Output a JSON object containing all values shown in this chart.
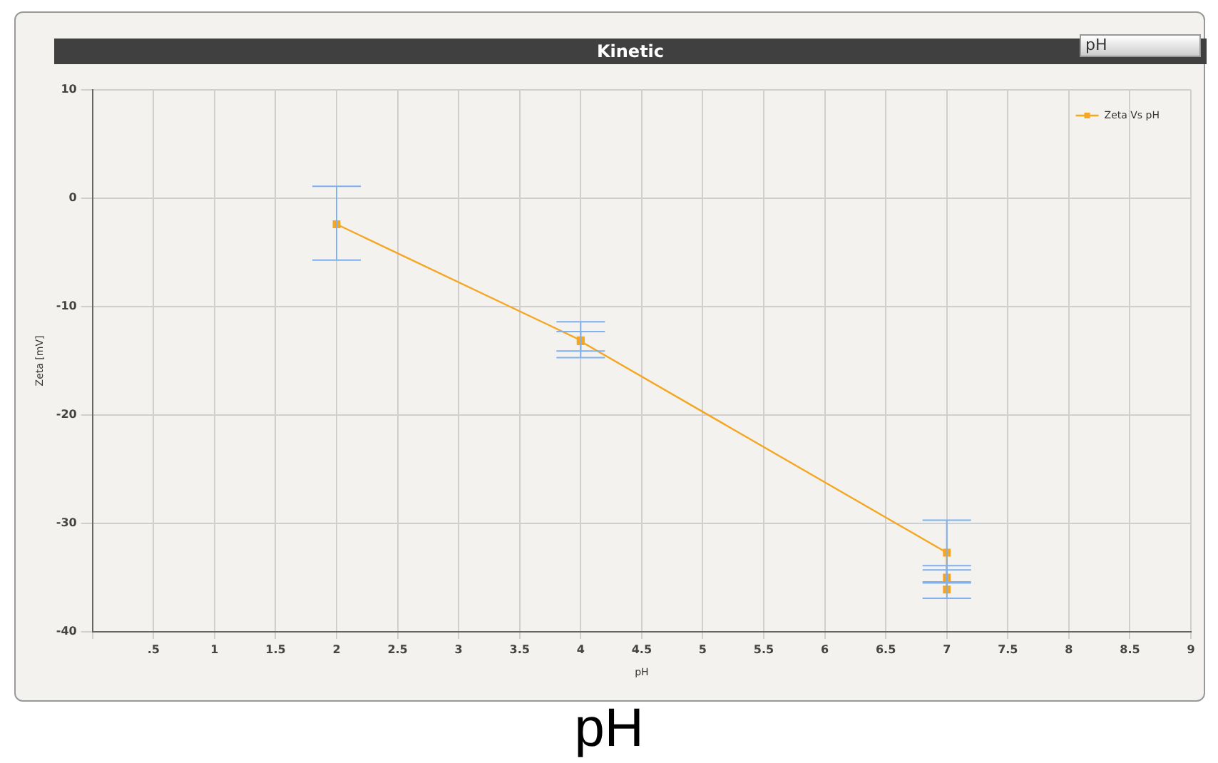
{
  "chart_data": {
    "type": "line",
    "title": "Kinetic",
    "xlabel": "pH",
    "ylabel": "Zeta [mV]",
    "annotations": [
      "pH",
      "pH"
    ],
    "x": [
      2,
      4,
      4,
      7,
      7,
      7
    ],
    "series": [
      {
        "name": "Zeta Vs pH",
        "color": "#f5a623",
        "values": [
          -2.4,
          -13.1,
          -13.2,
          -32.7,
          -35.0,
          -36.1
        ],
        "errors": [
          [
            -5.7,
            1.1
          ],
          [
            -14.1,
            -12.3
          ],
          [
            -14.7,
            -11.4
          ],
          [
            -35.5,
            -29.7
          ],
          [
            -35.4,
            -34.3
          ],
          [
            -36.9,
            -33.9
          ]
        ]
      }
    ],
    "xlim": [
      0,
      9
    ],
    "xticks": [
      {
        "value": 0,
        "label": null
      },
      {
        "value": 0.5,
        "label": ".5"
      },
      1,
      1.5,
      2,
      2.5,
      3,
      3.5,
      4,
      4.5,
      5,
      5.5,
      6,
      6.5,
      7,
      7.5,
      8,
      8.5,
      9
    ],
    "ylim": [
      -40,
      10
    ],
    "yticks": [
      -40,
      -30,
      -20,
      -10,
      0,
      10
    ],
    "grid": true,
    "legend": "top right",
    "marker": "square",
    "line_style": "solid"
  }
}
